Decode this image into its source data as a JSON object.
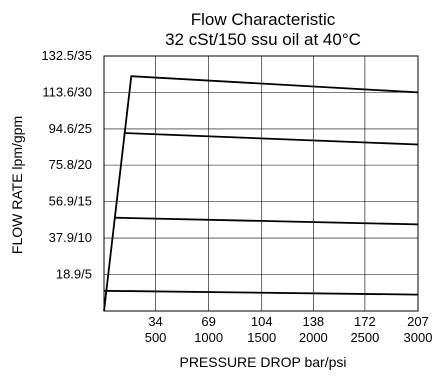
{
  "chart_data": {
    "type": "line",
    "title": "Flow Characteristic",
    "subtitle": "32 cSt/150 ssu oil at 40°C",
    "xlabel": "PRESSURE DROP bar/psi",
    "ylabel": "FLOW RATE lpm/gpm",
    "xlim": [
      0,
      207
    ],
    "ylim": [
      0,
      132.5
    ],
    "grid": true,
    "x_ticks": [
      {
        "value": 34,
        "bar": "34",
        "psi": "500"
      },
      {
        "value": 69,
        "bar": "69",
        "psi": "1000"
      },
      {
        "value": 104,
        "bar": "104",
        "psi": "1500"
      },
      {
        "value": 138,
        "bar": "138",
        "psi": "2000"
      },
      {
        "value": 172,
        "bar": "172",
        "psi": "2500"
      },
      {
        "value": 207,
        "bar": "207",
        "psi": "3000"
      }
    ],
    "y_ticks": [
      {
        "value": 18.9,
        "label": "18.9/5"
      },
      {
        "value": 37.9,
        "label": "37.9/10"
      },
      {
        "value": 56.9,
        "label": "56.9/15"
      },
      {
        "value": 75.8,
        "label": "75.8/20"
      },
      {
        "value": 94.6,
        "label": "94.6/25"
      },
      {
        "value": 113.6,
        "label": "113.6/30"
      },
      {
        "value": 132.5,
        "label": "132.5/35"
      }
    ],
    "series": [
      {
        "points": [
          [
            0,
            0
          ],
          [
            18,
            122
          ],
          [
            207,
            113.6
          ]
        ]
      },
      {
        "points": [
          [
            13,
            92.5
          ],
          [
            207,
            86.5
          ]
        ]
      },
      {
        "points": [
          [
            7,
            48.5
          ],
          [
            207,
            45
          ]
        ]
      },
      {
        "points": [
          [
            0,
            10.5
          ],
          [
            207,
            8.5
          ]
        ]
      }
    ]
  }
}
